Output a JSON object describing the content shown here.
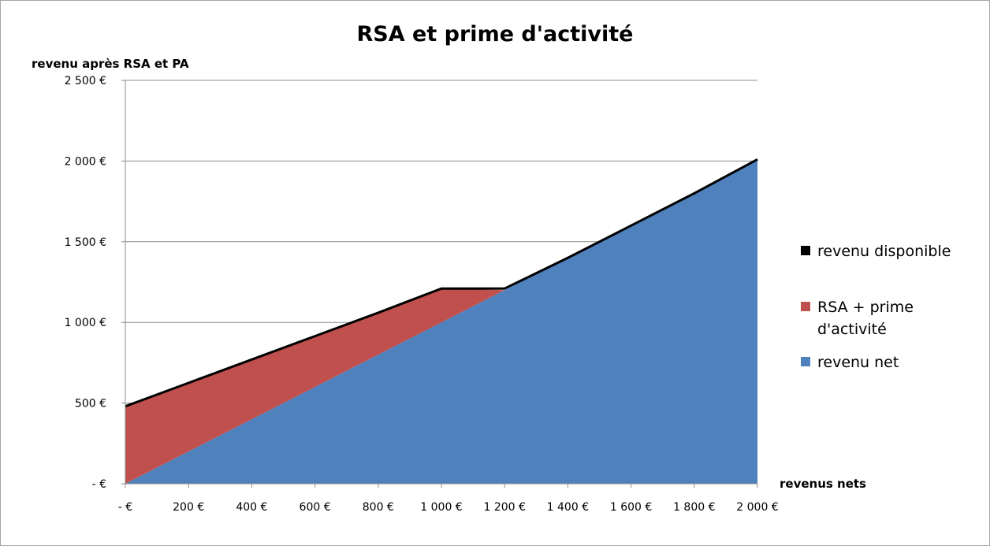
{
  "chart_data": {
    "type": "area",
    "title": "RSA et prime d'activité",
    "ylabel": "revenu après RSA et PA",
    "xlabel": "revenus nets",
    "x": [
      0,
      200,
      400,
      600,
      800,
      1000,
      1200,
      1400,
      1600,
      1800,
      2000
    ],
    "x_tick_labels": [
      "-  €",
      "200 €",
      "400 €",
      "600 €",
      "800 €",
      "1 000 €",
      "1 200 €",
      "1 400 €",
      "1 600 €",
      "1 800 €",
      "2 000 €"
    ],
    "y_ticks": [
      0,
      500,
      1000,
      1500,
      2000,
      2500
    ],
    "y_tick_labels": [
      "-  €",
      "500 €",
      "1 000 €",
      "1 500 €",
      "2 000 €",
      "2 500 €"
    ],
    "xlim": [
      0,
      2000
    ],
    "ylim": [
      0,
      2500
    ],
    "grid": "horizontal",
    "legend_position": "right",
    "series": [
      {
        "name": "revenu disponible",
        "kind": "line",
        "color": "#000000",
        "values": [
          480,
          625,
          770,
          915,
          1060,
          1210,
          1210,
          1400,
          1600,
          1800,
          2010
        ],
        "x": [
          0,
          200,
          400,
          600,
          800,
          1000,
          1200,
          1400,
          1600,
          1800,
          2000
        ]
      },
      {
        "name": "RSA + prime d'activité",
        "kind": "area",
        "color": "#c0504d",
        "values": [
          480,
          425,
          370,
          315,
          260,
          210,
          0,
          0,
          0,
          0,
          0
        ]
      },
      {
        "name": "revenu net",
        "kind": "area",
        "color": "#4f81bd",
        "values": [
          0,
          200,
          400,
          600,
          800,
          1000,
          1200,
          1400,
          1600,
          1800,
          2010
        ]
      }
    ]
  }
}
